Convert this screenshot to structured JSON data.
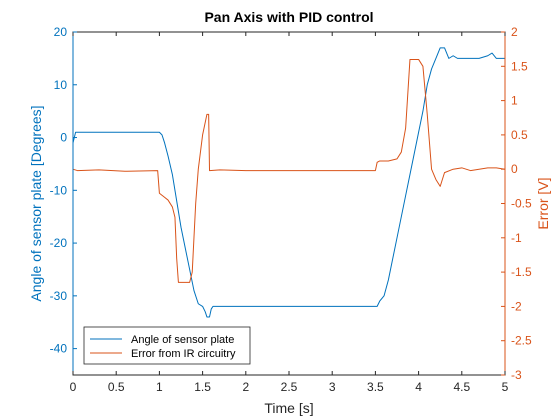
{
  "chart_data": {
    "type": "line",
    "title": "Pan Axis with PID control",
    "xlabel": "Time [s]",
    "ylabel_left": "Angle of sensor plate [Degrees]",
    "ylabel_right": "Error [V]",
    "xlim": [
      0,
      5
    ],
    "ylim_left": [
      -45,
      20
    ],
    "ylim_right": [
      -3,
      2
    ],
    "xticks": [
      "0",
      "0.5",
      "1",
      "1.5",
      "2",
      "2.5",
      "3",
      "3.5",
      "4",
      "4.5",
      "5"
    ],
    "yticks_left": [
      "20",
      "10",
      "0",
      "-10",
      "-20",
      "-30",
      "-40"
    ],
    "yticks_right": [
      "2",
      "1.5",
      "1",
      "0.5",
      "0",
      "-0.5",
      "-1",
      "-1.5",
      "-2",
      "-2.5",
      "-3"
    ],
    "grid": false,
    "legend_position": "bottom-left",
    "colors": {
      "left": "#0072BD",
      "right": "#D95319"
    },
    "series": [
      {
        "name": "Angle of sensor plate",
        "axis": "left",
        "color": "#0072BD",
        "points": [
          [
            0,
            -1
          ],
          [
            0.03,
            1
          ],
          [
            0.2,
            1
          ],
          [
            0.5,
            1
          ],
          [
            0.8,
            1
          ],
          [
            1.0,
            1
          ],
          [
            1.03,
            0.5
          ],
          [
            1.06,
            -1
          ],
          [
            1.1,
            -3.5
          ],
          [
            1.15,
            -7
          ],
          [
            1.2,
            -12
          ],
          [
            1.25,
            -17
          ],
          [
            1.3,
            -21
          ],
          [
            1.35,
            -25
          ],
          [
            1.4,
            -29
          ],
          [
            1.45,
            -31.5
          ],
          [
            1.5,
            -32
          ],
          [
            1.53,
            -33
          ],
          [
            1.55,
            -34
          ],
          [
            1.58,
            -34
          ],
          [
            1.6,
            -32.5
          ],
          [
            1.62,
            -32
          ],
          [
            1.7,
            -32
          ],
          [
            2.0,
            -32
          ],
          [
            2.5,
            -32
          ],
          [
            3.0,
            -32
          ],
          [
            3.5,
            -32
          ],
          [
            3.52,
            -32
          ],
          [
            3.55,
            -31
          ],
          [
            3.6,
            -30
          ],
          [
            3.65,
            -27
          ],
          [
            3.7,
            -23
          ],
          [
            3.75,
            -19
          ],
          [
            3.8,
            -15
          ],
          [
            3.85,
            -11
          ],
          [
            3.9,
            -7
          ],
          [
            3.95,
            -3
          ],
          [
            4.0,
            1
          ],
          [
            4.05,
            5
          ],
          [
            4.1,
            10
          ],
          [
            4.15,
            13
          ],
          [
            4.2,
            15
          ],
          [
            4.25,
            17
          ],
          [
            4.3,
            17
          ],
          [
            4.35,
            15
          ],
          [
            4.4,
            15.5
          ],
          [
            4.45,
            15
          ],
          [
            4.5,
            15
          ],
          [
            4.6,
            15
          ],
          [
            4.7,
            15
          ],
          [
            4.8,
            15.5
          ],
          [
            4.85,
            16
          ],
          [
            4.9,
            15
          ],
          [
            5.0,
            15
          ]
        ]
      },
      {
        "name": "Error from IR circuitry",
        "axis": "right",
        "color": "#D95319",
        "points": [
          [
            0,
            0
          ],
          [
            0.05,
            -0.02
          ],
          [
            0.3,
            -0.01
          ],
          [
            0.6,
            -0.03
          ],
          [
            0.98,
            -0.02
          ],
          [
            1.0,
            -0.35
          ],
          [
            1.05,
            -0.4
          ],
          [
            1.1,
            -0.45
          ],
          [
            1.15,
            -0.55
          ],
          [
            1.18,
            -0.7
          ],
          [
            1.2,
            -1.3
          ],
          [
            1.22,
            -1.65
          ],
          [
            1.25,
            -1.65
          ],
          [
            1.3,
            -1.65
          ],
          [
            1.35,
            -1.65
          ],
          [
            1.38,
            -1.5
          ],
          [
            1.42,
            -0.5
          ],
          [
            1.45,
            0
          ],
          [
            1.5,
            0.5
          ],
          [
            1.55,
            0.8
          ],
          [
            1.57,
            0.8
          ],
          [
            1.58,
            -0.02
          ],
          [
            1.7,
            -0.01
          ],
          [
            2.0,
            -0.02
          ],
          [
            2.5,
            -0.02
          ],
          [
            3.0,
            -0.02
          ],
          [
            3.5,
            -0.02
          ],
          [
            3.52,
            0.1
          ],
          [
            3.55,
            0.12
          ],
          [
            3.65,
            0.12
          ],
          [
            3.75,
            0.15
          ],
          [
            3.8,
            0.25
          ],
          [
            3.85,
            0.6
          ],
          [
            3.9,
            1.6
          ],
          [
            3.95,
            1.6
          ],
          [
            4.0,
            1.6
          ],
          [
            4.05,
            1.5
          ],
          [
            4.1,
            0.8
          ],
          [
            4.15,
            0
          ],
          [
            4.2,
            -0.15
          ],
          [
            4.25,
            -0.25
          ],
          [
            4.3,
            -0.05
          ],
          [
            4.4,
            0
          ],
          [
            4.5,
            0.02
          ],
          [
            4.6,
            -0.02
          ],
          [
            4.7,
            0
          ],
          [
            4.8,
            0.02
          ],
          [
            4.9,
            0.02
          ],
          [
            5.0,
            0
          ]
        ]
      }
    ]
  }
}
